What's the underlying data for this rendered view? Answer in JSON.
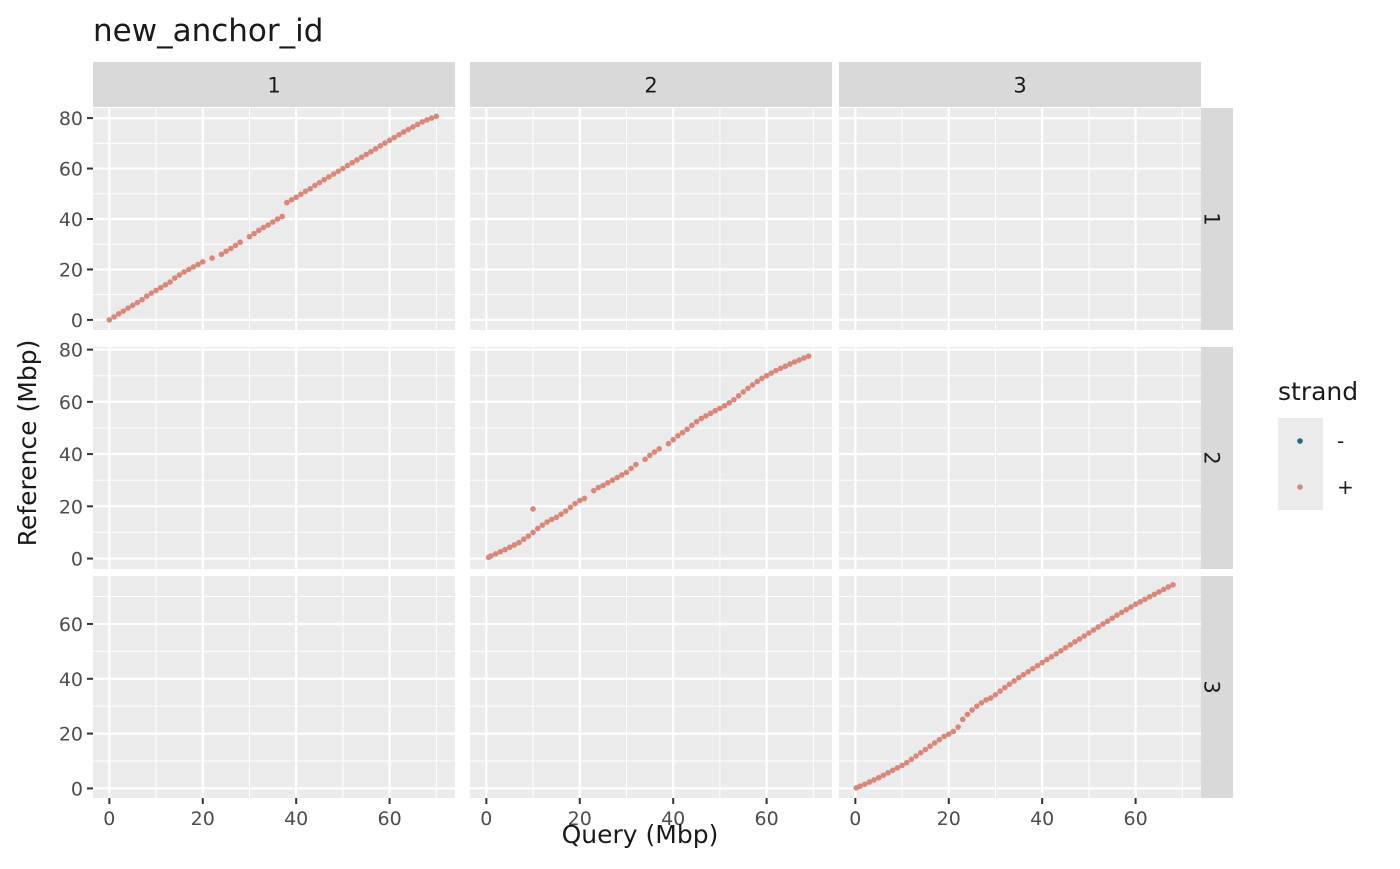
{
  "chart_data": {
    "type": "scatter",
    "title": "new_anchor_id",
    "xlabel": "Query (Mbp)",
    "ylabel": "Reference (Mbp)",
    "facet_columns": [
      "1",
      "2",
      "3"
    ],
    "facet_rows": [
      "1",
      "2",
      "3"
    ],
    "x_ticks": [
      0,
      20,
      40,
      60
    ],
    "x_range": [
      -3.5,
      74
    ],
    "row_y_ticks": [
      [
        0,
        20,
        40,
        60,
        80
      ],
      [
        0,
        20,
        40,
        60,
        80
      ],
      [
        0,
        20,
        40,
        60
      ]
    ],
    "row_y_ranges": [
      [
        -4,
        84
      ],
      [
        -4,
        81
      ],
      [
        -3.5,
        77.5
      ]
    ],
    "grid": true,
    "legend": {
      "title": "strand",
      "position": "right",
      "entries": [
        {
          "label": "-",
          "color": "#1f6b82"
        },
        {
          "label": "+",
          "color": "#d9877a"
        }
      ]
    },
    "panels": [
      {
        "row": "1",
        "col": "1",
        "strand": "+",
        "points": [
          [
            0,
            0
          ],
          [
            1,
            1.2
          ],
          [
            2,
            2.4
          ],
          [
            3,
            3.5
          ],
          [
            4,
            4.7
          ],
          [
            5,
            5.8
          ],
          [
            6,
            6.9
          ],
          [
            7,
            8
          ],
          [
            8,
            9.4
          ],
          [
            9,
            10.6
          ],
          [
            10,
            11.7
          ],
          [
            11,
            12.8
          ],
          [
            12,
            13.9
          ],
          [
            13,
            15
          ],
          [
            14,
            16.6
          ],
          [
            15,
            17.8
          ],
          [
            16,
            19
          ],
          [
            17,
            20
          ],
          [
            18,
            21
          ],
          [
            19,
            22
          ],
          [
            20,
            23
          ],
          [
            22,
            24.5
          ],
          [
            24,
            26
          ],
          [
            25,
            27.2
          ],
          [
            26,
            28.3
          ],
          [
            27,
            29.5
          ],
          [
            28,
            30.8
          ],
          [
            30,
            33
          ],
          [
            31,
            34.2
          ],
          [
            32,
            35.5
          ],
          [
            33,
            36.6
          ],
          [
            34,
            37.6
          ],
          [
            35,
            38.8
          ],
          [
            36,
            40
          ],
          [
            37,
            41
          ],
          [
            38,
            46.5
          ],
          [
            39,
            47.6
          ],
          [
            40,
            48.6
          ],
          [
            41,
            49.8
          ],
          [
            42,
            51
          ],
          [
            43,
            52
          ],
          [
            44,
            53.3
          ],
          [
            45,
            54.4
          ],
          [
            46,
            55.6
          ],
          [
            47,
            56.7
          ],
          [
            48,
            57.8
          ],
          [
            49,
            58.9
          ],
          [
            50,
            60
          ],
          [
            51,
            61.2
          ],
          [
            52,
            62.3
          ],
          [
            53,
            63.4
          ],
          [
            54,
            64.5
          ],
          [
            55,
            65.6
          ],
          [
            56,
            66.7
          ],
          [
            57,
            67.8
          ],
          [
            58,
            69
          ],
          [
            59,
            70.1
          ],
          [
            60,
            71.2
          ],
          [
            61,
            72.3
          ],
          [
            62,
            73.4
          ],
          [
            63,
            74.5
          ],
          [
            64,
            75.5
          ],
          [
            65,
            76.5
          ],
          [
            66,
            77.5
          ],
          [
            67,
            78.5
          ],
          [
            68,
            79.3
          ],
          [
            69,
            80
          ],
          [
            70,
            80.7
          ]
        ]
      },
      {
        "row": "2",
        "col": "2",
        "strand": "+",
        "points": [
          [
            0.5,
            0.5
          ],
          [
            1,
            1
          ],
          [
            2,
            1.8
          ],
          [
            3,
            2.6
          ],
          [
            4,
            3.4
          ],
          [
            5,
            4.3
          ],
          [
            6,
            5.2
          ],
          [
            7,
            6.1
          ],
          [
            8,
            7.4
          ],
          [
            9,
            8.6
          ],
          [
            10,
            10
          ],
          [
            10,
            19
          ],
          [
            11,
            11.5
          ],
          [
            12,
            12.8
          ],
          [
            13,
            14
          ],
          [
            14,
            15
          ],
          [
            15,
            15.8
          ],
          [
            16,
            17
          ],
          [
            17,
            18.2
          ],
          [
            18,
            19.6
          ],
          [
            19,
            21
          ],
          [
            20,
            22.2
          ],
          [
            21,
            23
          ],
          [
            23,
            26
          ],
          [
            24,
            27.2
          ],
          [
            25,
            28
          ],
          [
            26,
            29
          ],
          [
            27,
            30
          ],
          [
            28,
            31
          ],
          [
            29,
            32
          ],
          [
            30,
            33
          ],
          [
            31,
            34.5
          ],
          [
            32,
            36
          ],
          [
            34,
            38
          ],
          [
            35,
            39.5
          ],
          [
            36,
            40.8
          ],
          [
            37,
            42
          ],
          [
            39,
            44
          ],
          [
            40,
            45.5
          ],
          [
            41,
            47
          ],
          [
            42,
            48.2
          ],
          [
            43,
            49.5
          ],
          [
            44,
            51
          ],
          [
            45,
            52.4
          ],
          [
            46,
            53.6
          ],
          [
            47,
            54.6
          ],
          [
            48,
            55.6
          ],
          [
            49,
            56.6
          ],
          [
            50,
            57.5
          ],
          [
            51,
            58.5
          ],
          [
            52,
            59.6
          ],
          [
            53,
            60.8
          ],
          [
            54,
            62.3
          ],
          [
            55,
            63.8
          ],
          [
            56,
            65.2
          ],
          [
            57,
            66.5
          ],
          [
            58,
            67.8
          ],
          [
            59,
            69
          ],
          [
            60,
            70
          ],
          [
            61,
            71
          ],
          [
            62,
            72
          ],
          [
            63,
            72.8
          ],
          [
            64,
            73.6
          ],
          [
            65,
            74.5
          ],
          [
            66,
            75.3
          ],
          [
            67,
            76
          ],
          [
            68,
            76.8
          ],
          [
            69,
            77.5
          ]
        ]
      },
      {
        "row": "3",
        "col": "3",
        "strand": "+",
        "points": [
          [
            0.2,
            0.2
          ],
          [
            1,
            0.8
          ],
          [
            2,
            1.5
          ],
          [
            3,
            2.3
          ],
          [
            4,
            3.1
          ],
          [
            5,
            3.9
          ],
          [
            6,
            4.8
          ],
          [
            7,
            5.7
          ],
          [
            8,
            6.6
          ],
          [
            9,
            7.5
          ],
          [
            10,
            8.4
          ],
          [
            11,
            9.4
          ],
          [
            12,
            10.6
          ],
          [
            13,
            11.8
          ],
          [
            14,
            13
          ],
          [
            15,
            14.2
          ],
          [
            16,
            15.4
          ],
          [
            17,
            16.6
          ],
          [
            18,
            17.8
          ],
          [
            19,
            19
          ],
          [
            20,
            19.8
          ],
          [
            21,
            20.8
          ],
          [
            22,
            22.4
          ],
          [
            23,
            25.2
          ],
          [
            24,
            27
          ],
          [
            25,
            28.6
          ],
          [
            26,
            30
          ],
          [
            27,
            31.2
          ],
          [
            28,
            32.3
          ],
          [
            29,
            33
          ],
          [
            30,
            34.2
          ],
          [
            31,
            35.5
          ],
          [
            32,
            36.8
          ],
          [
            33,
            38
          ],
          [
            34,
            39.2
          ],
          [
            35,
            40.4
          ],
          [
            36,
            41.5
          ],
          [
            37,
            42.6
          ],
          [
            38,
            43.7
          ],
          [
            39,
            44.8
          ],
          [
            40,
            45.9
          ],
          [
            41,
            47
          ],
          [
            42,
            48
          ],
          [
            43,
            49.1
          ],
          [
            44,
            50.2
          ],
          [
            45,
            51.3
          ],
          [
            46,
            52.4
          ],
          [
            47,
            53.5
          ],
          [
            48,
            54.5
          ],
          [
            49,
            55.6
          ],
          [
            50,
            56.7
          ],
          [
            51,
            57.8
          ],
          [
            52,
            58.9
          ],
          [
            53,
            60
          ],
          [
            54,
            61
          ],
          [
            55,
            62.1
          ],
          [
            56,
            63.2
          ],
          [
            57,
            64.2
          ],
          [
            58,
            65.2
          ],
          [
            59,
            66.2
          ],
          [
            60,
            67.2
          ],
          [
            61,
            68.1
          ],
          [
            62,
            69
          ],
          [
            63,
            69.9
          ],
          [
            64,
            70.8
          ],
          [
            65,
            71.7
          ],
          [
            66,
            72.6
          ],
          [
            67,
            73.5
          ],
          [
            68,
            74.3
          ]
        ]
      }
    ]
  }
}
